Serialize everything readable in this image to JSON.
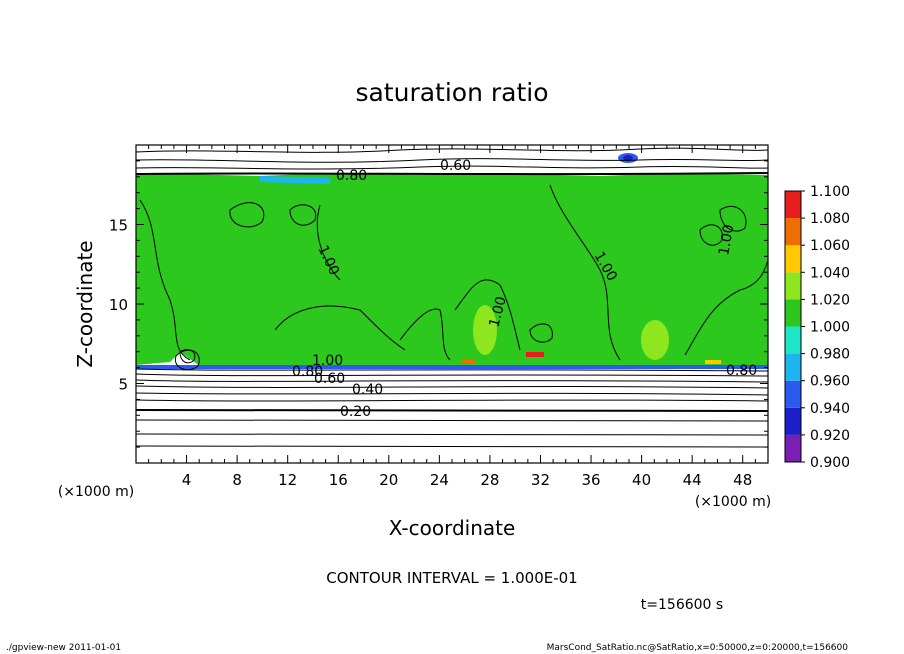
{
  "chart_data": {
    "type": "heatmap",
    "title": "saturation ratio",
    "xlabel": "X-coordinate",
    "ylabel": "Z-coordinate",
    "x_unit": "(×1000 m)",
    "y_unit": "(×1000 m)",
    "xlim": [
      0,
      50
    ],
    "ylim": [
      0,
      20
    ],
    "x_ticks": [
      4,
      8,
      12,
      16,
      20,
      24,
      28,
      32,
      36,
      40,
      44,
      48
    ],
    "y_ticks": [
      5,
      10,
      15
    ],
    "colorbar": {
      "levels": [
        0.9,
        0.92,
        0.94,
        0.96,
        0.98,
        1.0,
        1.02,
        1.04,
        1.06,
        1.08,
        1.1
      ],
      "labels": [
        "0.900",
        "0.920",
        "0.940",
        "0.960",
        "0.980",
        "1.000",
        "1.020",
        "1.040",
        "1.060",
        "1.080",
        "1.100"
      ],
      "colors": [
        "#7a1fb4",
        "#1e1ec8",
        "#2a5af0",
        "#1eb4f0",
        "#1ee6c8",
        "#2cc81e",
        "#8ee61e",
        "#ffc800",
        "#f06e00",
        "#e61e1e",
        "#f08c8c"
      ]
    },
    "contour_labels": [
      "0.60",
      "0.80",
      "1.00",
      "1.00",
      "1.00",
      "1.00",
      "1.00",
      "0.80",
      "0.60",
      "0.40",
      "0.20",
      "0.80"
    ],
    "contour_interval": "CONTOUR INTERVAL = 1.000E-01",
    "time": "t=156600 s",
    "saturated_layer_z": [
      6.0,
      18.0
    ]
  },
  "footer": {
    "left": "./gpview-new  2011-01-01",
    "right": "MarsCond_SatRatio.nc@SatRatio,x=0:50000,z=0:20000,t=156600"
  }
}
